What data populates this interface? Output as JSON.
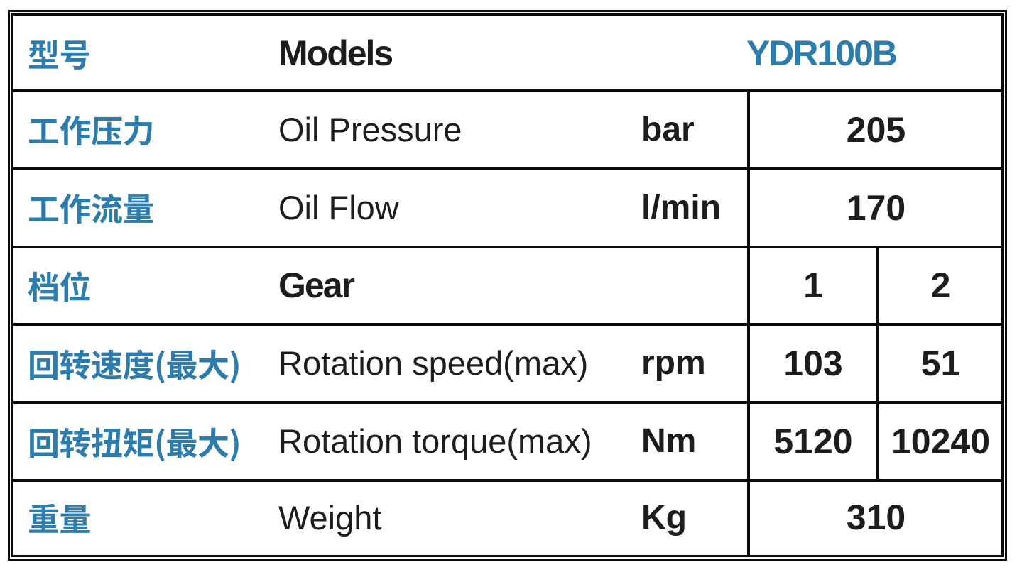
{
  "table": {
    "accent_color": "#2e7cab",
    "text_color": "#1e1c1c",
    "border_color": "#0a0a0a",
    "rows": [
      {
        "cn": "型号",
        "en": "Models",
        "en_bold": true,
        "unit": "",
        "values": [
          "YDR100B"
        ],
        "span": "model"
      },
      {
        "cn": "工作压力",
        "en": "Oil Pressure",
        "en_bold": false,
        "unit": "bar",
        "values": [
          "205"
        ],
        "span": "merged"
      },
      {
        "cn": "工作流量",
        "en": "Oil Flow",
        "en_bold": false,
        "unit": "l/min",
        "values": [
          "170"
        ],
        "span": "merged"
      },
      {
        "cn": "档位",
        "en": "Gear",
        "en_bold": true,
        "unit": "",
        "values": [
          "1",
          "2"
        ],
        "span": "split"
      },
      {
        "cn": "回转速度(最大)",
        "en": "Rotation speed(max)",
        "en_bold": false,
        "unit": "rpm",
        "values": [
          "103",
          "51"
        ],
        "span": "split"
      },
      {
        "cn": "回转扭矩(最大)",
        "en": "Rotation torque(max)",
        "en_bold": false,
        "unit": "Nm",
        "values": [
          "5120",
          "10240"
        ],
        "span": "split"
      },
      {
        "cn": "重量",
        "en": "Weight",
        "en_bold": false,
        "unit": "Kg",
        "values": [
          "310"
        ],
        "span": "merged"
      }
    ]
  },
  "chart_data": {
    "type": "table",
    "rows": [
      [
        "型号",
        "Models",
        "YDR100B"
      ],
      [
        "工作压力",
        "Oil Pressure",
        "bar",
        "205"
      ],
      [
        "工作流量",
        "Oil Flow",
        "l/min",
        "170"
      ],
      [
        "档位",
        "Gear",
        "1",
        "2"
      ],
      [
        "回转速度(最大)",
        "Rotation speed(max)",
        "rpm",
        "103",
        "51"
      ],
      [
        "回转扭矩(最大)",
        "Rotation torque(max)",
        "Nm",
        "5120",
        "10240"
      ],
      [
        "重量",
        "Weight",
        "Kg",
        "310"
      ]
    ]
  }
}
